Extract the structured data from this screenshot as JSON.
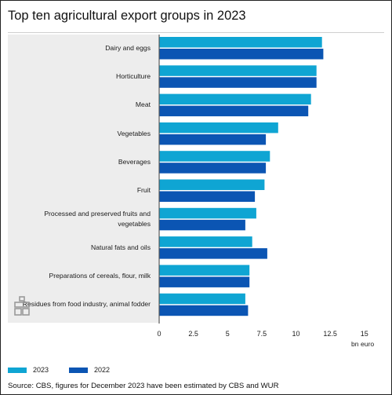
{
  "colors": {
    "series_2023": "#0fa5d3",
    "series_2022": "#0b55b3",
    "panel": "#ededed",
    "axis": "#555555"
  },
  "chart_data": {
    "type": "bar",
    "orientation": "horizontal",
    "title": "Top ten agricultural export groups in 2023",
    "xlabel": "bn euro",
    "xlim": [
      0,
      15
    ],
    "xticks": [
      "0",
      "2.5",
      "5",
      "7.5",
      "10",
      "12.5",
      "15"
    ],
    "grid": false,
    "legend_position": "bottom-left",
    "categories": [
      "Dairy and eggs",
      "Horticulture",
      "Meat",
      "Vegetables",
      "Beverages",
      "Fruit",
      "Processed and preserved fruits and vegetables",
      "Natural fats and oils",
      "Preparations of cereals, flour, milk",
      "Residues from food industry, animal fodder"
    ],
    "series": [
      {
        "name": "2023",
        "color": "#0fa5d3",
        "values": [
          11.9,
          11.5,
          11.1,
          8.7,
          8.1,
          7.7,
          7.1,
          6.8,
          6.6,
          6.3
        ]
      },
      {
        "name": "2022",
        "color": "#0b55b3",
        "values": [
          12.0,
          11.5,
          10.9,
          7.8,
          7.8,
          7.0,
          6.3,
          7.9,
          6.6,
          6.5
        ]
      }
    ],
    "source": "Source: CBS, figures for December 2023 have been estimated by CBS and WUR"
  }
}
